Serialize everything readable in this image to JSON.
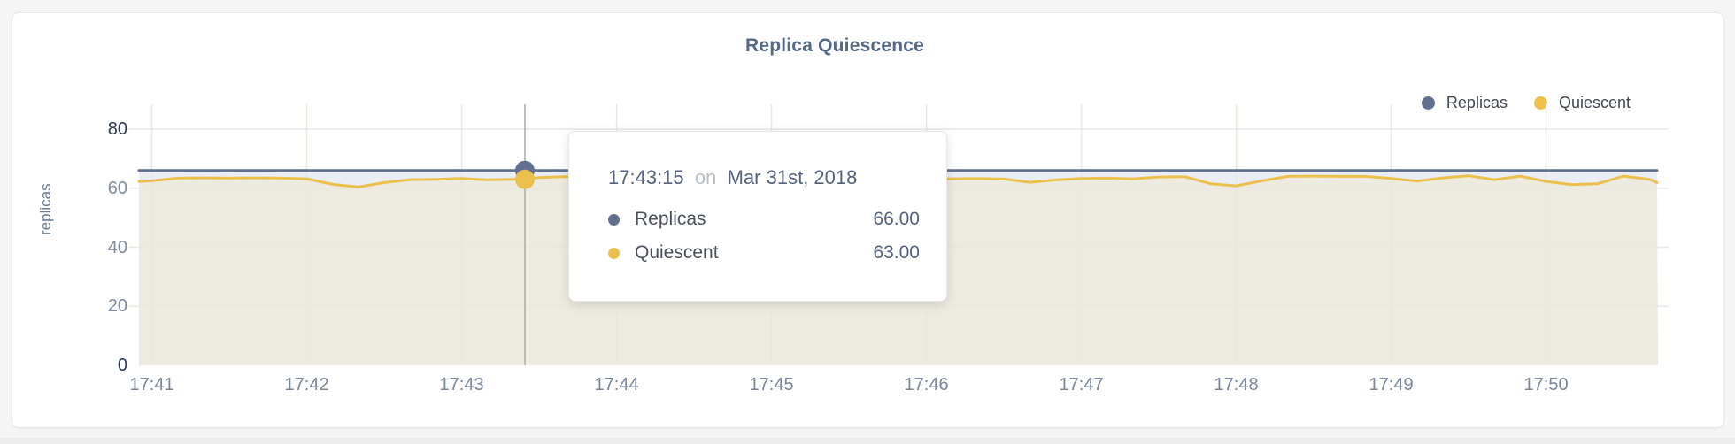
{
  "colors": {
    "page_bg": "#f5f5f5",
    "card_bg": "#ffffff",
    "card_border": "#e7e7e7",
    "grid": "#e8e7e2",
    "hover_line": "#a9a9a9",
    "title": "#54688a",
    "axis_label": "#7e8ba0",
    "axis_label_strong": "#2c3a55",
    "x_label": "#78859b",
    "legend_text": "#3f464e",
    "tooltip_text": "#54627e",
    "tooltip_muted": "#b9bfc7"
  },
  "chart_data": {
    "type": "area",
    "title": "Replica Quiescence",
    "xlabel": "",
    "ylabel": "replicas",
    "ylim": [
      0,
      80
    ],
    "grid": true,
    "legend_position": "top-right",
    "y_tick_values": [
      80,
      60,
      40,
      20,
      0
    ],
    "y_tick_labels": [
      "80",
      "60",
      "40",
      "20",
      "0"
    ],
    "x_tick_labels": [
      "17:41",
      "17:42",
      "17:43",
      "17:44",
      "17:45",
      "17:46",
      "17:47",
      "17:48",
      "17:49",
      "17:50"
    ],
    "x_times": [
      "17:40:55",
      "17:41:00",
      "17:41:10",
      "17:41:20",
      "17:41:30",
      "17:41:40",
      "17:41:50",
      "17:42:00",
      "17:42:10",
      "17:42:20",
      "17:42:30",
      "17:42:40",
      "17:42:50",
      "17:43:00",
      "17:43:10",
      "17:43:20",
      "17:43:30",
      "17:43:40",
      "17:43:50",
      "17:44:00",
      "17:44:10",
      "17:44:20",
      "17:44:30",
      "17:44:40",
      "17:44:50",
      "17:45:00",
      "17:45:10",
      "17:45:20",
      "17:45:30",
      "17:45:40",
      "17:45:50",
      "17:46:00",
      "17:46:10",
      "17:46:20",
      "17:46:30",
      "17:46:40",
      "17:46:50",
      "17:47:00",
      "17:47:10",
      "17:47:20",
      "17:47:30",
      "17:47:40",
      "17:47:50",
      "17:48:00",
      "17:48:10",
      "17:48:20",
      "17:48:30",
      "17:48:40",
      "17:48:50",
      "17:49:00",
      "17:49:10",
      "17:49:20",
      "17:49:30",
      "17:49:40",
      "17:49:50",
      "17:50:00",
      "17:50:10",
      "17:50:20",
      "17:50:30",
      "17:50:40",
      "17:50:43"
    ],
    "series": [
      {
        "name": "Replicas",
        "color": "#61708e",
        "fill": "#eaedf3",
        "values": [
          66,
          66,
          66,
          66,
          66,
          66,
          66,
          66,
          66,
          66,
          66,
          66,
          66,
          66,
          66,
          66,
          66,
          66,
          66,
          66,
          66,
          66,
          66,
          66,
          66,
          66,
          66,
          66,
          66,
          66,
          66,
          66,
          66,
          66,
          66,
          66,
          66,
          66,
          66,
          66,
          66,
          66,
          66,
          66,
          66,
          66,
          66,
          66,
          66,
          66,
          66,
          66,
          66,
          66,
          66,
          66,
          66,
          66,
          66,
          66,
          66
        ]
      },
      {
        "name": "Quiescent",
        "color": "#ecc04d",
        "fill": "#edeae0",
        "values": [
          62.3,
          62.5,
          63.4,
          63.5,
          63.4,
          63.5,
          63.4,
          63.2,
          61.3,
          60.4,
          61.9,
          62.9,
          63.0,
          63.3,
          62.8,
          63.0,
          63.6,
          63.9,
          64.0,
          63.8,
          63.9,
          64.0,
          63.8,
          63.9,
          64.0,
          63.9,
          64.0,
          63.8,
          63.9,
          64.0,
          63.9,
          63.0,
          63.2,
          63.3,
          63.1,
          62.0,
          62.8,
          63.3,
          63.4,
          63.2,
          63.8,
          63.9,
          61.5,
          60.8,
          62.5,
          64.0,
          64.1,
          64.0,
          64.0,
          63.3,
          62.4,
          63.5,
          64.2,
          62.9,
          64.1,
          62.3,
          61.2,
          61.5,
          64.1,
          63.0,
          61.9
        ]
      }
    ]
  },
  "tooltip": {
    "time": "17:43:15",
    "separator": "on",
    "date": "Mar 31st, 2018",
    "rows": [
      {
        "name": "Replicas",
        "value": "66.00",
        "color": "#61708e"
      },
      {
        "name": "Quiescent",
        "value": "63.00",
        "color": "#ecc04d"
      }
    ]
  }
}
